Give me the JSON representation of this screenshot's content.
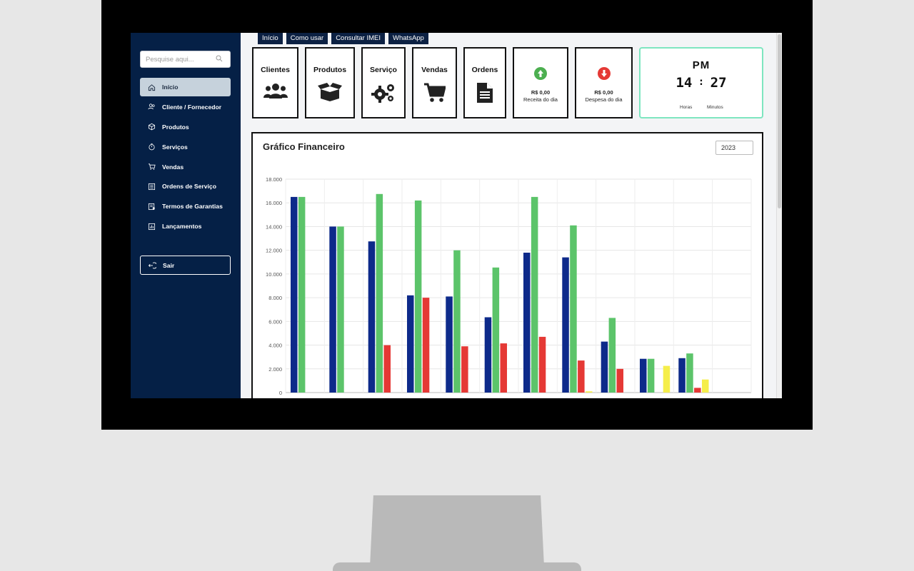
{
  "search": {
    "placeholder": "Pesquise aqui..."
  },
  "sidebar": {
    "items": [
      {
        "label": "Início",
        "icon": "home-icon",
        "active": true
      },
      {
        "label": "Cliente / Fornecedor",
        "icon": "users-icon"
      },
      {
        "label": "Produtos",
        "icon": "box-icon"
      },
      {
        "label": "Serviços",
        "icon": "stopwatch-icon"
      },
      {
        "label": "Vendas",
        "icon": "cart-icon"
      },
      {
        "label": "Ordens de Serviço",
        "icon": "list-icon"
      },
      {
        "label": "Termos de Garantias",
        "icon": "document-icon"
      },
      {
        "label": "Lançamentos",
        "icon": "chart-icon"
      }
    ],
    "logout": "Sair"
  },
  "toplinks": [
    "Início",
    "Como usar",
    "Consultar IMEI",
    "WhatsApp"
  ],
  "cards": {
    "clientes": "Clientes",
    "produtos": "Produtos",
    "servico": "Serviço",
    "vendas": "Vendas",
    "ordens": "Ordens"
  },
  "receita": {
    "amount": "R$ 0,00",
    "label": "Receita do dia",
    "color": "#4caf50"
  },
  "despesa": {
    "amount": "R$ 0,00",
    "label": "Despesa do dia",
    "color": "#e53935"
  },
  "clock": {
    "period": "PM",
    "hours": "14",
    "minutes": "27",
    "hours_label": "Horas",
    "minutes_label": "Minutos"
  },
  "chart_panel": {
    "title": "Gráfico Financeiro",
    "year": "2023"
  },
  "chart_data": {
    "type": "bar",
    "ylim": [
      0,
      18000
    ],
    "yticks": [
      0,
      2000,
      4000,
      6000,
      8000,
      10000,
      12000,
      14000,
      16000,
      18000
    ],
    "ytick_labels": [
      "0",
      "2.000",
      "4.000",
      "6.000",
      "8.000",
      "10.000",
      "12.000",
      "14.000",
      "16.000",
      "18.000"
    ],
    "grid": true,
    "colors": [
      "#0d2a8a",
      "#5cc46a",
      "#e53935",
      "#f5ee4a"
    ],
    "series": [
      {
        "values": [
          16500,
          14000,
          12750,
          8200,
          8100,
          6350,
          11800,
          11400,
          4300,
          2850,
          2900,
          0
        ]
      },
      {
        "values": [
          16500,
          14000,
          16750,
          16200,
          12000,
          10550,
          16500,
          14100,
          6300,
          2850,
          3300,
          0
        ]
      },
      {
        "values": [
          0,
          0,
          4000,
          8000,
          3900,
          4150,
          4700,
          2700,
          2000,
          0,
          400,
          0
        ]
      },
      {
        "values": [
          0,
          0,
          0,
          0,
          0,
          0,
          0,
          100,
          0,
          2250,
          1100,
          0
        ]
      }
    ]
  }
}
